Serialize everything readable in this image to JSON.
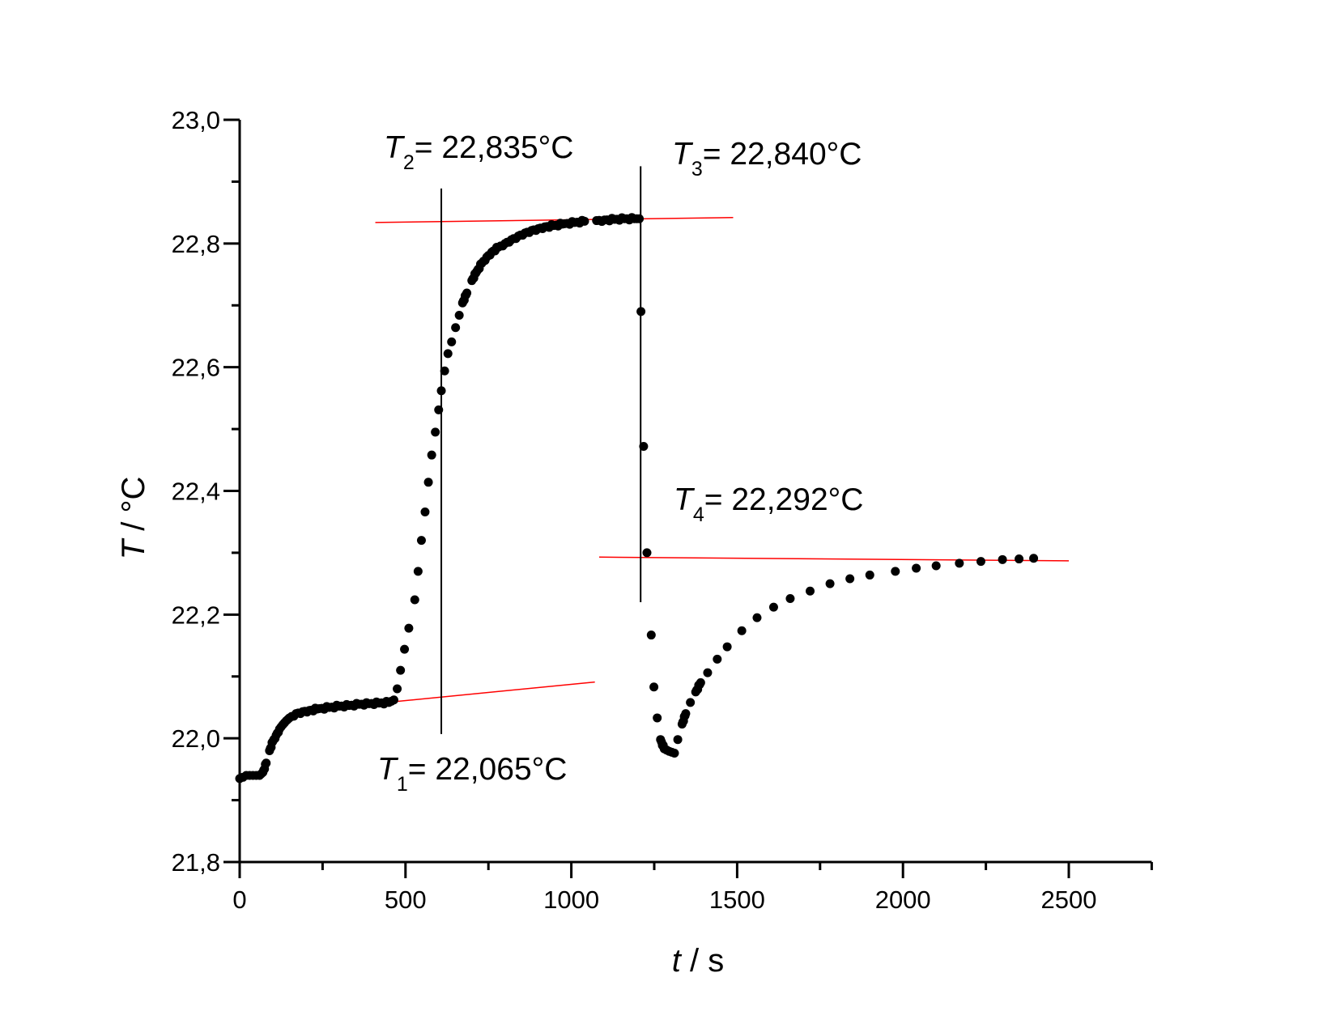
{
  "chart_data": {
    "type": "scatter",
    "title": "",
    "xlabel": {
      "var": "t",
      "unit": " / s"
    },
    "ylabel": {
      "var": "T",
      "unit": " / °C"
    },
    "xlim": [
      0,
      2750
    ],
    "ylim": [
      21.8,
      23.0
    ],
    "grid": false,
    "x_ticks": [
      0,
      500,
      1000,
      1500,
      2000,
      2500
    ],
    "x_tick_labels": [
      "0",
      "500",
      "1000",
      "1500",
      "2000",
      "2500"
    ],
    "y_ticks": [
      21.8,
      22.0,
      22.2,
      22.4,
      22.6,
      22.8,
      23.0
    ],
    "y_tick_labels": [
      "21,8",
      "22,0",
      "22,2",
      "22,4",
      "22,6",
      "22,8",
      "23,0"
    ],
    "marker_color": "#000000",
    "fit_line_color": "#ff0000",
    "series": [
      {
        "name": "temperature",
        "x": [
          0,
          10,
          20,
          30,
          40,
          50,
          60,
          70,
          80,
          90,
          100,
          110,
          120,
          130,
          140,
          150,
          170,
          190,
          210,
          240,
          270,
          300,
          330,
          360,
          390,
          420,
          450,
          465,
          475,
          485,
          497,
          510,
          528,
          538,
          548,
          559,
          569,
          579,
          590,
          600,
          608,
          618,
          628,
          639,
          651,
          662,
          672,
          685,
          700,
          715,
          730,
          745,
          760,
          780,
          800,
          819,
          840,
          860,
          880,
          900,
          920,
          947,
          980,
          1010,
          1040,
          1076,
          1100,
          1130,
          1160,
          1190,
          1205,
          1210,
          1218,
          1228,
          1241,
          1249,
          1259,
          1269,
          1280,
          1295,
          1311,
          1321,
          1334,
          1345,
          1359,
          1375,
          1390,
          1411,
          1440,
          1470,
          1514,
          1560,
          1610,
          1660,
          1720,
          1780,
          1840,
          1900,
          1977,
          2040,
          2100,
          2170,
          2235,
          2300,
          2350,
          2394
        ],
        "y": [
          21.935,
          21.937,
          21.94,
          21.94,
          21.94,
          21.94,
          21.94,
          21.945,
          21.96,
          21.98,
          21.995,
          22.005,
          22.015,
          22.022,
          22.028,
          22.033,
          22.04,
          22.043,
          22.045,
          22.048,
          22.05,
          22.052,
          22.053,
          22.055,
          22.056,
          22.057,
          22.058,
          22.062,
          22.08,
          22.11,
          22.144,
          22.178,
          22.224,
          22.27,
          22.32,
          22.366,
          22.414,
          22.458,
          22.495,
          22.531,
          22.562,
          22.594,
          22.622,
          22.641,
          22.664,
          22.684,
          22.704,
          22.72,
          22.74,
          22.755,
          22.768,
          22.778,
          22.786,
          22.794,
          22.8,
          22.806,
          22.812,
          22.817,
          22.821,
          22.824,
          22.827,
          22.829,
          22.832,
          22.834,
          22.836,
          22.837,
          22.838,
          22.839,
          22.84,
          22.84,
          22.84,
          22.69,
          22.472,
          22.3,
          22.167,
          22.083,
          22.033,
          21.998,
          21.983,
          21.979,
          21.976,
          21.998,
          22.023,
          22.04,
          22.058,
          22.075,
          22.09,
          22.106,
          22.128,
          22.148,
          22.174,
          22.195,
          22.212,
          22.226,
          22.238,
          22.25,
          22.258,
          22.264,
          22.27,
          22.275,
          22.279,
          22.283,
          22.286,
          22.289,
          22.29,
          22.291
        ]
      }
    ],
    "fit_lines": [
      {
        "x": [
          214,
          1071
        ],
        "y": [
          22.046,
          22.091
        ]
      },
      {
        "x": [
          409,
          1488
        ],
        "y": [
          22.834,
          22.842
        ]
      },
      {
        "x": [
          1084,
          2500
        ],
        "y": [
          22.293,
          22.287
        ]
      }
    ],
    "vertical_lines": [
      {
        "x": 608,
        "y": [
          22.007,
          22.889
        ]
      },
      {
        "x": 1209,
        "y": [
          22.22,
          22.925
        ]
      }
    ],
    "annotations": [
      {
        "var": "T",
        "sub": "1",
        "text": "= 22,065°C"
      },
      {
        "var": "T",
        "sub": "2",
        "text": "= 22,835°C"
      },
      {
        "var": "T",
        "sub": "3",
        "text": "= 22,840°C"
      },
      {
        "var": "T",
        "sub": "4",
        "text": "= 22,292°C"
      }
    ]
  }
}
